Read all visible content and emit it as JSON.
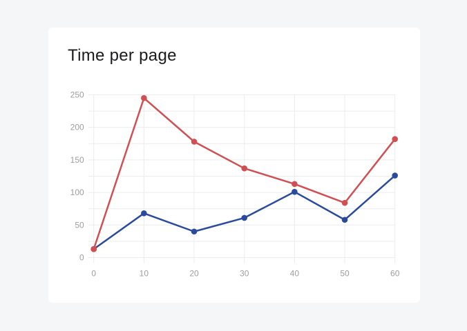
{
  "page": {
    "background_color": "#f5f6f8",
    "card_background_color": "#ffffff"
  },
  "chart_data": {
    "type": "line",
    "title": "Time per page",
    "xlabel": "",
    "ylabel": "",
    "x": [
      0,
      10,
      20,
      30,
      40,
      50,
      60
    ],
    "xlim": [
      0,
      60
    ],
    "ylim": [
      0,
      250
    ],
    "x_ticks": [
      0,
      10,
      20,
      30,
      40,
      50,
      60
    ],
    "x_tick_labels": [
      "0",
      "10",
      "20",
      "30",
      "40",
      "50",
      "60"
    ],
    "y_ticks": [
      0,
      50,
      100,
      150,
      200,
      250
    ],
    "y_tick_labels": [
      "0",
      "50",
      "100",
      "150",
      "200",
      "250"
    ],
    "y_grid_step": 25,
    "grid": true,
    "legend_position": "none",
    "series": [
      {
        "name": "blue",
        "color": "#2a4b9d",
        "values": [
          13,
          68,
          40,
          61,
          101,
          58,
          126
        ]
      },
      {
        "name": "red",
        "color": "#d04f52",
        "values": [
          13,
          245,
          178,
          137,
          113,
          84,
          182
        ]
      }
    ],
    "styles": {
      "gridline_color": "#ececec",
      "axis_label_color": "#9b9da1",
      "title_color": "#1a1b1e",
      "line_width": 2.5,
      "point_radius": 4.3,
      "tick_mark_length": 8
    }
  }
}
